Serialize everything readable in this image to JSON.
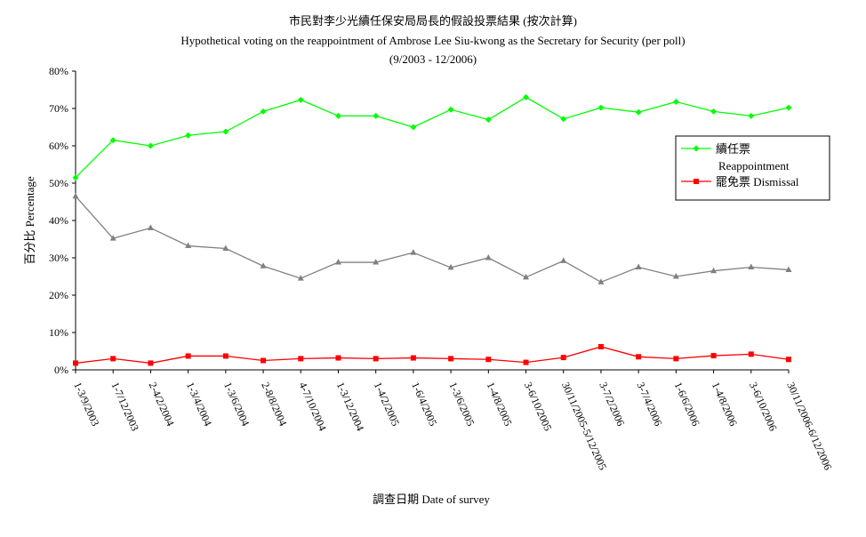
{
  "chart_data": {
    "type": "line",
    "title": "市民對李少光續任保安局局長的假設投票結果 (按次計算)",
    "subtitle": "Hypothetical voting on the reappointment of Ambrose Lee Siu-kwong as the Secretary for Security (per poll)",
    "date_range": "(9/2003 - 12/2006)",
    "xlabel": "調查日期 Date of survey",
    "ylabel": "百分比 Percentage",
    "ylim": [
      0,
      80
    ],
    "yticks": [
      "0%",
      "10%",
      "20%",
      "30%",
      "40%",
      "50%",
      "60%",
      "70%",
      "80%"
    ],
    "grid": false,
    "legend_position": "right",
    "categories": [
      "1-3/9/2003",
      "1-7/12/2003",
      "2-4/2/2004",
      "1-3/4/2004",
      "1-3/6/2004",
      "2-8/8/2004",
      "4-7/10/2004",
      "1-3/12/2004",
      "1-4/2/2005",
      "1-6/4/2005",
      "1-3/6/2005",
      "1-4/8/2005",
      "3-6/10/2005",
      "30/11/2005-5/12/2005",
      "3-7/2/2006",
      "3-7/4/2006",
      "1-6/6/2006",
      "1-4/8/2006",
      "3-6/10/2006",
      "30/11/2006-6/12/2006"
    ],
    "series": [
      {
        "name": "續任票",
        "name_en": "Reappointment",
        "color": "#00ff00",
        "marker": "diamond",
        "values": [
          51.5,
          61.5,
          60,
          62.8,
          63.8,
          69.2,
          72.3,
          68,
          68,
          65,
          69.7,
          67,
          73,
          67.2,
          70.2,
          69,
          71.8,
          69.2,
          68,
          70.2
        ]
      },
      {
        "name": "罷免票",
        "name_en": "Dismissal",
        "color": "#ff0000",
        "marker": "square",
        "values": [
          1.8,
          3,
          1.8,
          3.7,
          3.7,
          2.5,
          3,
          3.2,
          3,
          3.2,
          3,
          2.8,
          2,
          3.3,
          6.2,
          3.5,
          3,
          3.8,
          4.2,
          2.8
        ]
      },
      {
        "name": "",
        "color": "#808080",
        "marker": "triangle",
        "values": [
          46.5,
          35.2,
          38,
          33.2,
          32.5,
          27.8,
          24.5,
          28.8,
          28.8,
          31.4,
          27.4,
          30,
          24.8,
          29.2,
          23.5,
          27.5,
          25,
          26.5,
          27.5,
          26.8
        ]
      }
    ]
  }
}
